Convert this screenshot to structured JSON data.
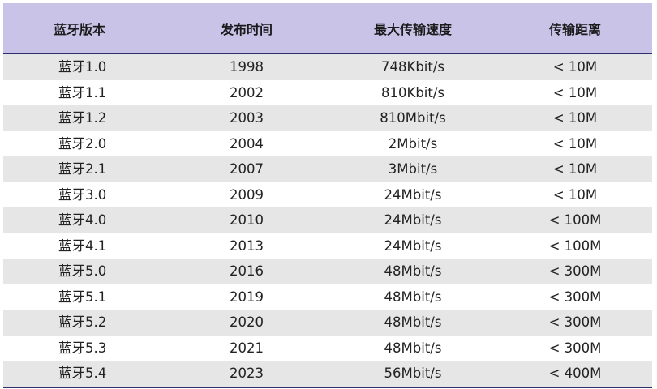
{
  "table": {
    "headers": [
      "蓝牙版本",
      "发布时间",
      "最大传输速度",
      "传输距离"
    ],
    "rows": [
      [
        "蓝牙1.0",
        "1998",
        "748Kbit/s",
        "< 10M"
      ],
      [
        "蓝牙1.1",
        "2002",
        "810Kbit/s",
        "< 10M"
      ],
      [
        "蓝牙1.2",
        "2003",
        "810Mbit/s",
        "< 10M"
      ],
      [
        "蓝牙2.0",
        "2004",
        "2Mbit/s",
        "< 10M"
      ],
      [
        "蓝牙2.1",
        "2007",
        "3Mbit/s",
        "< 10M"
      ],
      [
        "蓝牙3.0",
        "2009",
        "24Mbit/s",
        "< 10M"
      ],
      [
        "蓝牙4.0",
        "2010",
        "24Mbit/s",
        "< 100M"
      ],
      [
        "蓝牙4.1",
        "2013",
        "24Mbit/s",
        "< 100M"
      ],
      [
        "蓝牙5.0",
        "2016",
        "48Mbit/s",
        "< 300M"
      ],
      [
        "蓝牙5.1",
        "2019",
        "48Mbit/s",
        "< 300M"
      ],
      [
        "蓝牙5.2",
        "2020",
        "48Mbit/s",
        "< 300M"
      ],
      [
        "蓝牙5.3",
        "2021",
        "48Mbit/s",
        "< 300M"
      ],
      [
        "蓝牙5.4",
        "2023",
        "56Mbit/s",
        "< 400M"
      ]
    ]
  },
  "colors": {
    "header_bg": "#c8c3e7",
    "stripe_bg": "#e6e6e6",
    "rule": "#2c2f6b"
  }
}
